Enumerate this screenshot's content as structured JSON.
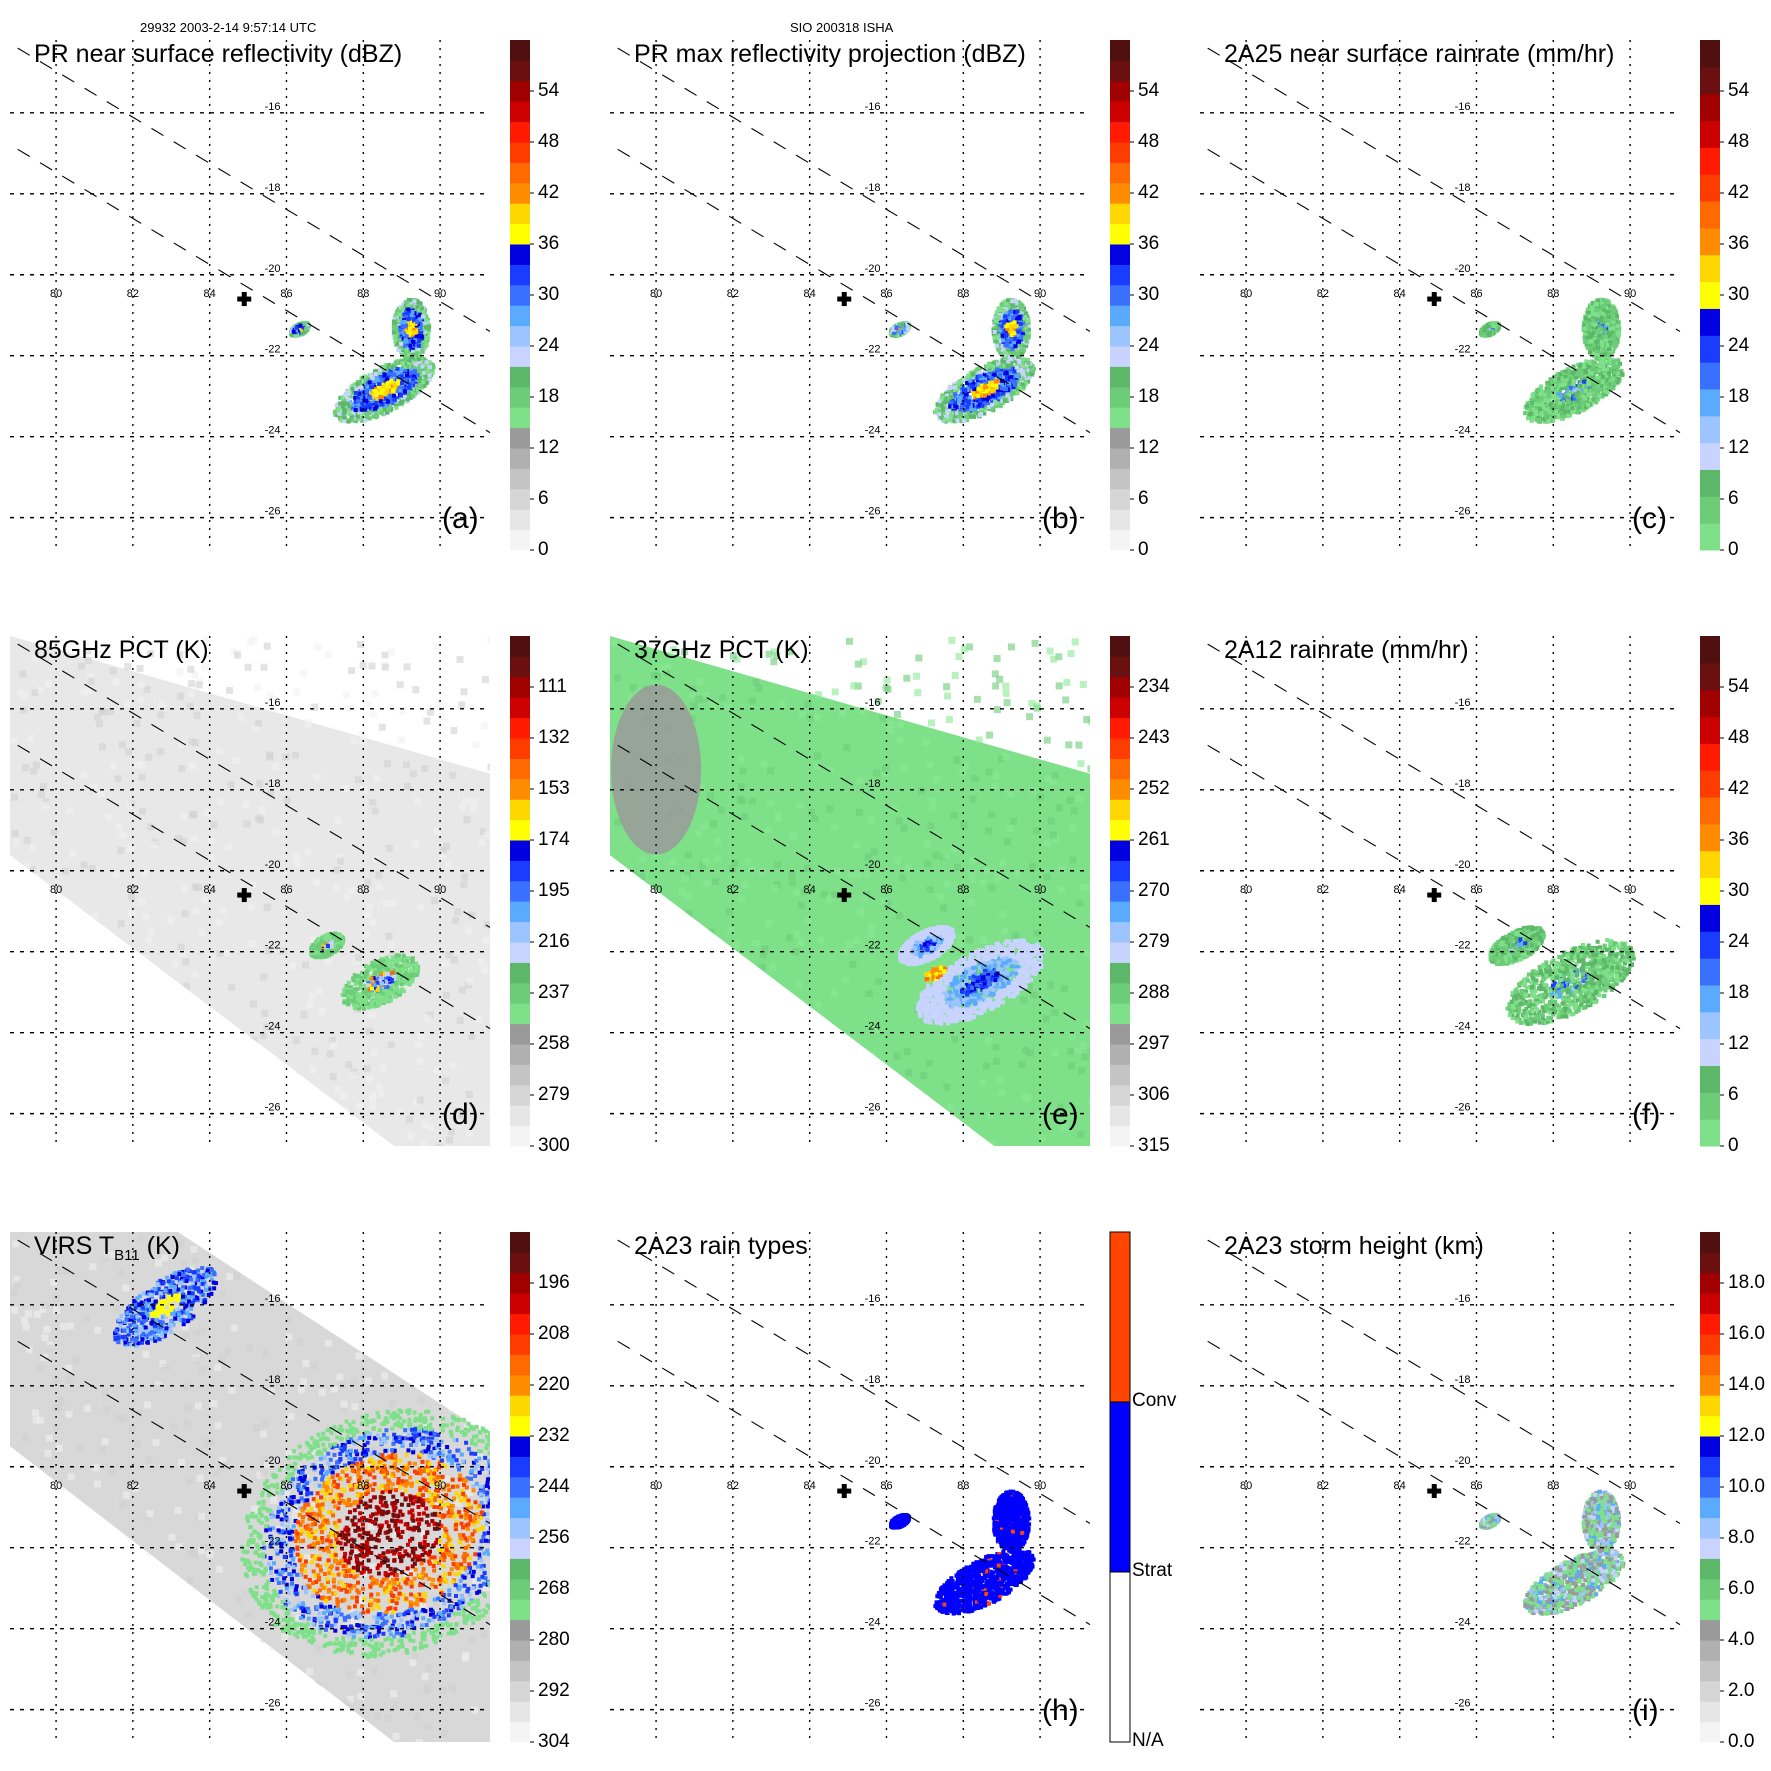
{
  "header": {
    "orbit_time": "29932 2003-2-14 9:57:14 UTC",
    "storm_id": "SIO 200318 ISHA"
  },
  "map": {
    "lon_ticks": [
      "80",
      "82",
      "84",
      "86",
      "88",
      "90"
    ],
    "lat_ticks": [
      "-16",
      "-18",
      "-20",
      "-22",
      "-24",
      "-26"
    ],
    "storm_center": {
      "lon": 84.9,
      "lat": -20.6,
      "icon": "plus-marker-icon"
    },
    "swath_edges": "dashed lines",
    "gridlines": "dotted"
  },
  "palettes": {
    "standard": [
      "#f4f4f4",
      "#e6e6e6",
      "#d6d6d6",
      "#c4c4c4",
      "#b0b0b0",
      "#9a9a9a",
      "#7fe08a",
      "#6ccc78",
      "#5cb868",
      "#c8d4ff",
      "#9cc4ff",
      "#5aaaff",
      "#3a70ff",
      "#1a3cff",
      "#0000e0",
      "#ffff00",
      "#ffd700",
      "#ff8c00",
      "#ff6a00",
      "#ff3c00",
      "#ff1a00",
      "#cc0000",
      "#a00000",
      "#6a1010",
      "#501010"
    ],
    "rain": [
      "#7fe08a",
      "#6ccc78",
      "#5cb868",
      "#c8d4ff",
      "#9cc4ff",
      "#5aaaff",
      "#3a70ff",
      "#1a3cff",
      "#0000e0",
      "#ffff00",
      "#ffd700",
      "#ff8c00",
      "#ff6a00",
      "#ff3c00",
      "#ff1a00",
      "#cc0000",
      "#a00000",
      "#6a1010",
      "#501010"
    ],
    "rain_types": {
      "Conv": "#ff4500",
      "Strat": "#0000ff",
      "N/A": "#ffffff"
    }
  },
  "panels": [
    {
      "id": "a",
      "title": "PR near surface reflectivity (dBZ)",
      "label": "(a)",
      "palette": "standard",
      "colorbar_ticks": [
        "0",
        "6",
        "12",
        "18",
        "24",
        "30",
        "36",
        "42",
        "48",
        "54"
      ],
      "coverage": "swath",
      "field": "pr_nsr"
    },
    {
      "id": "b",
      "title": "PR max reflectivity projection (dBZ)",
      "label": "(b)",
      "palette": "standard",
      "colorbar_ticks": [
        "0",
        "6",
        "12",
        "18",
        "24",
        "30",
        "36",
        "42",
        "48",
        "54"
      ],
      "coverage": "swath",
      "field": "pr_max"
    },
    {
      "id": "c",
      "title": "2A25 near surface rainrate (mm/hr)",
      "label": "(c)",
      "palette": "rain",
      "colorbar_ticks": [
        "0",
        "6",
        "12",
        "18",
        "24",
        "30",
        "36",
        "42",
        "48",
        "54"
      ],
      "coverage": "swath",
      "field": "rr25"
    },
    {
      "id": "d",
      "title": "85GHz PCT (K)",
      "label": "(d)",
      "palette": "standard",
      "colorbar_ticks": [
        "300",
        "279",
        "258",
        "237",
        "216",
        "195",
        "174",
        "153",
        "132",
        "111"
      ],
      "coverage": "tmi",
      "field": "pct85"
    },
    {
      "id": "e",
      "title": "37GHz PCT (K)",
      "label": "(e)",
      "palette": "standard",
      "colorbar_ticks": [
        "315",
        "306",
        "297",
        "288",
        "279",
        "270",
        "261",
        "252",
        "243",
        "234"
      ],
      "coverage": "tmi",
      "field": "pct37"
    },
    {
      "id": "f",
      "title": "2A12 rainrate (mm/hr)",
      "label": "(f)",
      "palette": "rain",
      "colorbar_ticks": [
        "0",
        "6",
        "12",
        "18",
        "24",
        "30",
        "36",
        "42",
        "48",
        "54"
      ],
      "coverage": "tmi",
      "field": "rr12"
    },
    {
      "id": "g",
      "title": "VIRS T",
      "title_sub": "B11",
      "title_end": " (K)",
      "label": "",
      "palette": "standard",
      "colorbar_ticks": [
        "304",
        "292",
        "280",
        "268",
        "256",
        "244",
        "232",
        "220",
        "208",
        "196"
      ],
      "coverage": "virs",
      "field": "virs"
    },
    {
      "id": "h",
      "title": "2A23 rain types",
      "label": "(h)",
      "palette": "rain_types",
      "colorbar_ticks": [
        "N/A",
        "Strat",
        "Conv"
      ],
      "coverage": "swath",
      "field": "types"
    },
    {
      "id": "i",
      "title": "2A23 storm height (km)",
      "label": "(i)",
      "palette": "standard",
      "colorbar_ticks": [
        "0.0",
        "2.0",
        "4.0",
        "6.0",
        "8.0",
        "10.0",
        "12.0",
        "14.0",
        "16.0",
        "18.0"
      ],
      "coverage": "swath",
      "field": "height"
    }
  ]
}
